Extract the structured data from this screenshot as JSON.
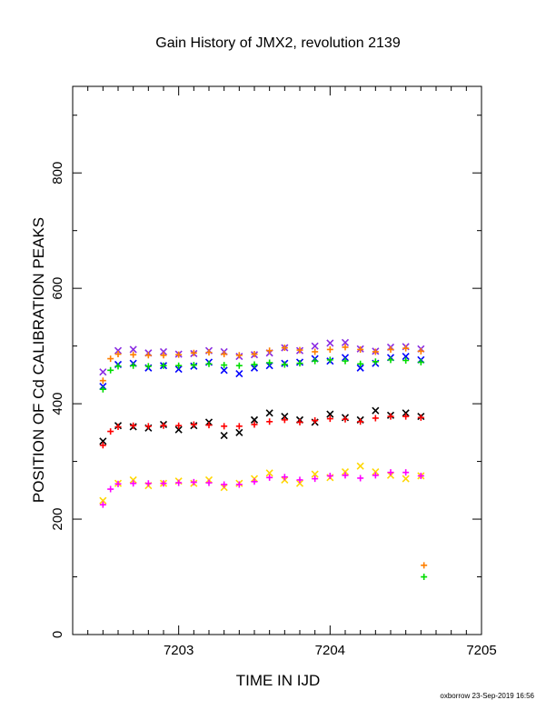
{
  "chart_data": {
    "type": "scatter",
    "title": "Gain History of JMX2, revolution 2139",
    "xlabel": "TIME IN IJD",
    "ylabel": "POSITION OF Cd CALIBRATION PEAKS",
    "xlim": [
      7202.3,
      7205.0
    ],
    "ylim": [
      0,
      950
    ],
    "x_ticks": [
      7203,
      7204,
      7205
    ],
    "x_tick_labels": [
      "7203",
      "7204",
      "7205"
    ],
    "y_ticks": [
      0,
      200,
      400,
      600,
      800
    ],
    "y_tick_labels": [
      "0",
      "200",
      "400",
      "600",
      "800"
    ],
    "grid": false,
    "legend": "none",
    "series": [
      {
        "color": "#8a2be2",
        "marker": "x",
        "x": [
          7202.5,
          7202.6,
          7202.7,
          7202.8,
          7202.9,
          7203.0,
          7203.1,
          7203.2,
          7203.3,
          7203.4,
          7203.5,
          7203.6,
          7203.7,
          7203.8,
          7203.9,
          7204.0,
          7204.1,
          7204.2,
          7204.3,
          7204.4,
          7204.5,
          7204.6
        ],
        "y": [
          455,
          492,
          494,
          488,
          490,
          486,
          487,
          492,
          490,
          482,
          485,
          488,
          497,
          492,
          500,
          505,
          506,
          495,
          491,
          498,
          499,
          495
        ]
      },
      {
        "color": "#ff7f00",
        "marker": "plus",
        "x": [
          7202.5,
          7202.55,
          7202.6,
          7202.7,
          7202.8,
          7202.9,
          7203.0,
          7203.1,
          7203.2,
          7203.3,
          7203.4,
          7203.5,
          7203.6,
          7203.7,
          7203.8,
          7203.9,
          7204.0,
          7204.1,
          7204.2,
          7204.3,
          7204.4,
          7204.5,
          7204.6,
          7204.62
        ],
        "y": [
          440,
          478,
          486,
          485,
          484,
          484,
          485,
          488,
          489,
          486,
          484,
          486,
          492,
          497,
          493,
          490,
          494,
          498,
          494,
          490,
          494,
          496,
          491,
          120
        ]
      },
      {
        "color": "#0000ff",
        "marker": "x",
        "x": [
          7202.5,
          7202.6,
          7202.7,
          7202.8,
          7202.9,
          7203.0,
          7203.1,
          7203.2,
          7203.3,
          7203.4,
          7203.5,
          7203.6,
          7203.7,
          7203.8,
          7203.9,
          7204.0,
          7204.1,
          7204.2,
          7204.3,
          7204.4,
          7204.5,
          7204.6
        ],
        "y": [
          430,
          468,
          470,
          462,
          466,
          460,
          465,
          472,
          458,
          452,
          462,
          466,
          470,
          472,
          478,
          474,
          480,
          462,
          470,
          480,
          482,
          476
        ]
      },
      {
        "color": "#00dd00",
        "marker": "plus",
        "x": [
          7202.5,
          7202.55,
          7202.6,
          7202.7,
          7202.8,
          7202.9,
          7203.0,
          7203.1,
          7203.2,
          7203.3,
          7203.4,
          7203.5,
          7203.6,
          7203.7,
          7203.8,
          7203.9,
          7204.0,
          7204.1,
          7204.2,
          7204.3,
          7204.4,
          7204.5,
          7204.6,
          7204.62
        ],
        "y": [
          425,
          458,
          465,
          466,
          465,
          466,
          466,
          467,
          469,
          467,
          466,
          468,
          471,
          468,
          470,
          474,
          476,
          474,
          469,
          473,
          476,
          475,
          472,
          100
        ]
      },
      {
        "color": "#000000",
        "marker": "x",
        "x": [
          7202.5,
          7202.6,
          7202.7,
          7202.8,
          7202.9,
          7203.0,
          7203.1,
          7203.2,
          7203.3,
          7203.4,
          7203.5,
          7203.6,
          7203.7,
          7203.8,
          7203.9,
          7204.0,
          7204.1,
          7204.2,
          7204.3,
          7204.4,
          7204.5,
          7204.6
        ],
        "y": [
          335,
          362,
          360,
          358,
          364,
          355,
          362,
          368,
          345,
          350,
          372,
          384,
          378,
          372,
          368,
          382,
          376,
          372,
          388,
          380,
          384,
          378
        ]
      },
      {
        "color": "#ff0000",
        "marker": "plus",
        "x": [
          7202.5,
          7202.55,
          7202.6,
          7202.7,
          7202.8,
          7202.9,
          7203.0,
          7203.1,
          7203.2,
          7203.3,
          7203.4,
          7203.5,
          7203.6,
          7203.7,
          7203.8,
          7203.9,
          7204.0,
          7204.1,
          7204.2,
          7204.3,
          7204.4,
          7204.5,
          7204.6
        ],
        "y": [
          328,
          352,
          360,
          362,
          361,
          362,
          362,
          364,
          363,
          361,
          361,
          364,
          369,
          372,
          368,
          371,
          374,
          373,
          369,
          375,
          378,
          378,
          376
        ]
      },
      {
        "color": "#ffd700",
        "marker": "x",
        "x": [
          7202.5,
          7202.6,
          7202.7,
          7202.8,
          7202.9,
          7203.0,
          7203.1,
          7203.2,
          7203.3,
          7203.4,
          7203.5,
          7203.6,
          7203.7,
          7203.8,
          7203.9,
          7204.0,
          7204.1,
          7204.2,
          7204.3,
          7204.4,
          7204.5,
          7204.6
        ],
        "y": [
          232,
          262,
          268,
          258,
          262,
          266,
          262,
          268,
          255,
          262,
          270,
          280,
          268,
          262,
          278,
          272,
          282,
          292,
          282,
          276,
          270,
          275
        ]
      },
      {
        "color": "#ff00ff",
        "marker": "plus",
        "x": [
          7202.5,
          7202.55,
          7202.6,
          7202.7,
          7202.8,
          7202.9,
          7203.0,
          7203.1,
          7203.2,
          7203.3,
          7203.4,
          7203.5,
          7203.6,
          7203.7,
          7203.8,
          7203.9,
          7204.0,
          7204.1,
          7204.2,
          7204.3,
          7204.4,
          7204.5,
          7204.6
        ],
        "y": [
          225,
          252,
          261,
          262,
          262,
          262,
          263,
          264,
          263,
          260,
          260,
          265,
          272,
          273,
          268,
          270,
          275,
          276,
          271,
          276,
          281,
          281,
          275
        ]
      }
    ]
  },
  "footer": {
    "credit": "oxborrow 23-Sep-2019 16:56"
  }
}
